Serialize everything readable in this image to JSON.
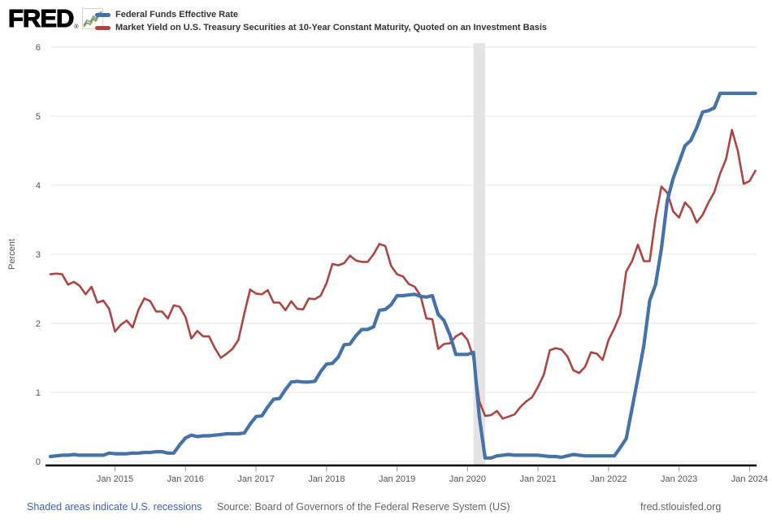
{
  "logo": {
    "brand": "FRED",
    "registered": "®"
  },
  "legend": [
    {
      "label": "Federal Funds Effective Rate",
      "color": "#4572a7"
    },
    {
      "label": "Market Yield on U.S. Treasury Securities at 10-Year Constant Maturity, Quoted on an Investment Basis",
      "color": "#aa4643"
    }
  ],
  "footer": {
    "recession_note": "Shaded areas indicate U.S. recessions",
    "recession_note_color": "#3b63b8",
    "source": "Source: Board of Governors of the Federal Reserve System (US)",
    "site": "fred.stlouisfed.org"
  },
  "chart_data": {
    "type": "line",
    "frequency": "monthly",
    "x_start": "2014-02",
    "x_end": "2024-02",
    "ylabel": "Percent",
    "ylim": [
      0,
      6
    ],
    "y_ticks": [
      0,
      1,
      2,
      3,
      4,
      5,
      6
    ],
    "grid": "horizontal",
    "grid_color": "#e6e6e6",
    "recession_color": "#e3e3e3",
    "axis_color": "#000000",
    "tick_color": "#989898",
    "legend_position": "top-left",
    "x_ticks": [
      {
        "label": "Jan 2015",
        "month_index": 11
      },
      {
        "label": "Jan 2016",
        "month_index": 23
      },
      {
        "label": "Jan 2017",
        "month_index": 35
      },
      {
        "label": "Jan 2018",
        "month_index": 47
      },
      {
        "label": "Jan 2019",
        "month_index": 59
      },
      {
        "label": "Jan 2020",
        "month_index": 71
      },
      {
        "label": "Jan 2021",
        "month_index": 83
      },
      {
        "label": "Jan 2022",
        "month_index": 95
      },
      {
        "label": "Jan 2023",
        "month_index": 107
      },
      {
        "label": "Jan 2024",
        "month_index": 119
      }
    ],
    "recession_bands": [
      {
        "start_month_index": 72,
        "end_month_index": 74
      }
    ],
    "series": [
      {
        "name": "Federal Funds Effective Rate",
        "color": "#4572a7",
        "line_width": 4.2,
        "values": [
          0.07,
          0.08,
          0.09,
          0.09,
          0.1,
          0.09,
          0.09,
          0.09,
          0.09,
          0.09,
          0.12,
          0.11,
          0.11,
          0.11,
          0.12,
          0.12,
          0.13,
          0.13,
          0.14,
          0.14,
          0.12,
          0.12,
          0.24,
          0.34,
          0.38,
          0.36,
          0.37,
          0.37,
          0.38,
          0.39,
          0.4,
          0.4,
          0.4,
          0.41,
          0.54,
          0.65,
          0.66,
          0.79,
          0.9,
          0.91,
          1.04,
          1.15,
          1.16,
          1.15,
          1.15,
          1.16,
          1.3,
          1.41,
          1.42,
          1.51,
          1.69,
          1.7,
          1.82,
          1.91,
          1.91,
          1.95,
          2.19,
          2.2,
          2.27,
          2.4,
          2.4,
          2.41,
          2.42,
          2.39,
          2.38,
          2.4,
          2.13,
          2.04,
          1.83,
          1.55,
          1.55,
          1.55,
          1.58,
          0.65,
          0.05,
          0.05,
          0.08,
          0.09,
          0.1,
          0.09,
          0.09,
          0.09,
          0.09,
          0.09,
          0.08,
          0.07,
          0.07,
          0.06,
          0.08,
          0.1,
          0.09,
          0.08,
          0.08,
          0.08,
          0.08,
          0.08,
          0.08,
          0.2,
          0.33,
          0.77,
          1.21,
          1.68,
          2.33,
          2.56,
          3.08,
          3.78,
          4.1,
          4.33,
          4.57,
          4.65,
          4.83,
          5.06,
          5.08,
          5.12,
          5.33,
          5.33,
          5.33,
          5.33,
          5.33,
          5.33,
          5.33
        ]
      },
      {
        "name": "Market Yield on U.S. Treasury Securities at 10-Year Constant Maturity, Quoted on an Investment Basis",
        "color": "#aa4643",
        "line_width": 2.6,
        "values": [
          2.71,
          2.72,
          2.71,
          2.56,
          2.6,
          2.54,
          2.42,
          2.53,
          2.3,
          2.33,
          2.21,
          1.88,
          1.98,
          2.04,
          1.94,
          2.2,
          2.36,
          2.32,
          2.17,
          2.17,
          2.07,
          2.26,
          2.24,
          2.09,
          1.78,
          1.89,
          1.81,
          1.81,
          1.64,
          1.5,
          1.56,
          1.63,
          1.76,
          2.14,
          2.49,
          2.43,
          2.42,
          2.48,
          2.3,
          2.3,
          2.19,
          2.32,
          2.21,
          2.2,
          2.36,
          2.35,
          2.4,
          2.58,
          2.86,
          2.84,
          2.87,
          2.98,
          2.91,
          2.89,
          2.89,
          3.0,
          3.15,
          3.12,
          2.83,
          2.71,
          2.68,
          2.57,
          2.53,
          2.4,
          2.07,
          2.06,
          1.63,
          1.7,
          1.71,
          1.81,
          1.86,
          1.76,
          1.5,
          0.87,
          0.66,
          0.67,
          0.73,
          0.62,
          0.65,
          0.68,
          0.79,
          0.87,
          0.93,
          1.08,
          1.26,
          1.61,
          1.64,
          1.62,
          1.52,
          1.32,
          1.28,
          1.37,
          1.58,
          1.56,
          1.47,
          1.76,
          1.93,
          2.13,
          2.75,
          2.9,
          3.14,
          2.9,
          2.9,
          3.52,
          3.98,
          3.89,
          3.62,
          3.53,
          3.75,
          3.66,
          3.46,
          3.57,
          3.75,
          3.9,
          4.17,
          4.38,
          4.8,
          4.5,
          4.02,
          4.06,
          4.21
        ]
      }
    ]
  }
}
